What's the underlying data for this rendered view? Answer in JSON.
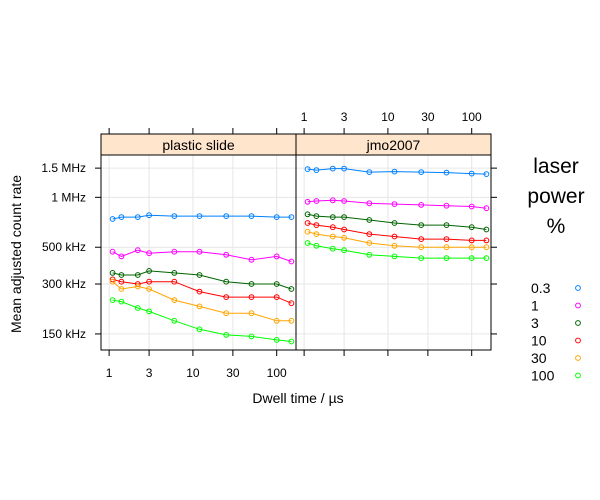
{
  "chart_data": {
    "type": "line",
    "xlabel": "Dwell time / µs",
    "ylabel": "Mean adjusted count rate",
    "x_scale": "log",
    "y_scale": "log",
    "xlim": [
      0.8,
      170
    ],
    "ylim": [
      120000,
      1800000
    ],
    "x_ticks": [
      {
        "value": 1,
        "label": "1"
      },
      {
        "value": 3,
        "label": "3"
      },
      {
        "value": 10,
        "label": "10"
      },
      {
        "value": 30,
        "label": "30"
      },
      {
        "value": 100,
        "label": "100"
      }
    ],
    "y_ticks": [
      {
        "value": 150000,
        "label": "150 kHz"
      },
      {
        "value": 300000,
        "label": "300 kHz"
      },
      {
        "value": 500000,
        "label": "500 kHz"
      },
      {
        "value": 1000000,
        "label": "1 MHz"
      },
      {
        "value": 1500000,
        "label": "1.5 MHz"
      }
    ],
    "grid": true,
    "legend": {
      "title_lines": [
        "laser",
        "power",
        "%"
      ],
      "position": "right",
      "entries": [
        {
          "label": "0.3",
          "color": "#0080ff"
        },
        {
          "label": "1",
          "color": "#ff00ff"
        },
        {
          "label": "3",
          "color": "#006400"
        },
        {
          "label": "10",
          "color": "#ff0000"
        },
        {
          "label": "30",
          "color": "#ffa500"
        },
        {
          "label": "100",
          "color": "#00ff00"
        }
      ]
    },
    "panels": [
      {
        "strip": "plastic slide",
        "x": [
          1.1,
          1.4,
          2.2,
          3,
          6,
          12,
          25,
          50,
          100,
          150
        ],
        "series": [
          {
            "name": "0.3",
            "color": "#0080ff",
            "values": [
              740000,
              760000,
              760000,
              780000,
              770000,
              770000,
              770000,
              770000,
              760000,
              760000
            ]
          },
          {
            "name": "1",
            "color": "#ff00ff",
            "values": [
              470000,
              440000,
              480000,
              460000,
              470000,
              470000,
              450000,
              420000,
              440000,
              410000
            ]
          },
          {
            "name": "3",
            "color": "#006400",
            "values": [
              350000,
              340000,
              340000,
              360000,
              350000,
              340000,
              310000,
              300000,
              300000,
              280000
            ]
          },
          {
            "name": "10",
            "color": "#ff0000",
            "values": [
              320000,
              310000,
              300000,
              310000,
              310000,
              270000,
              250000,
              250000,
              250000,
              230000
            ]
          },
          {
            "name": "30",
            "color": "#ffa500",
            "values": [
              310000,
              280000,
              290000,
              280000,
              240000,
              220000,
              200000,
              200000,
              180000,
              180000
            ]
          },
          {
            "name": "100",
            "color": "#00ff00",
            "values": [
              240000,
              235000,
              215000,
              205000,
              180000,
              160000,
              148000,
              145000,
              138000,
              135000
            ]
          }
        ]
      },
      {
        "strip": "jmo2007",
        "x": [
          1.1,
          1.4,
          2.2,
          3,
          6,
          12,
          25,
          50,
          100,
          150
        ],
        "series": [
          {
            "name": "0.3",
            "color": "#0080ff",
            "values": [
              1480000,
              1460000,
              1490000,
              1490000,
              1420000,
              1430000,
              1420000,
              1410000,
              1390000,
              1380000
            ]
          },
          {
            "name": "1",
            "color": "#ff00ff",
            "values": [
              940000,
              950000,
              960000,
              950000,
              920000,
              910000,
              900000,
              890000,
              880000,
              860000
            ]
          },
          {
            "name": "3",
            "color": "#006400",
            "values": [
              790000,
              770000,
              760000,
              760000,
              730000,
              700000,
              680000,
              680000,
              660000,
              640000
            ]
          },
          {
            "name": "10",
            "color": "#ff0000",
            "values": [
              700000,
              680000,
              660000,
              640000,
              600000,
              580000,
              560000,
              560000,
              550000,
              550000
            ]
          },
          {
            "name": "30",
            "color": "#ffa500",
            "values": [
              620000,
              600000,
              580000,
              570000,
              530000,
              510000,
              500000,
              500000,
              500000,
              500000
            ]
          },
          {
            "name": "100",
            "color": "#00ff00",
            "values": [
              530000,
              510000,
              490000,
              480000,
              450000,
              440000,
              430000,
              430000,
              430000,
              430000
            ]
          }
        ]
      }
    ]
  }
}
